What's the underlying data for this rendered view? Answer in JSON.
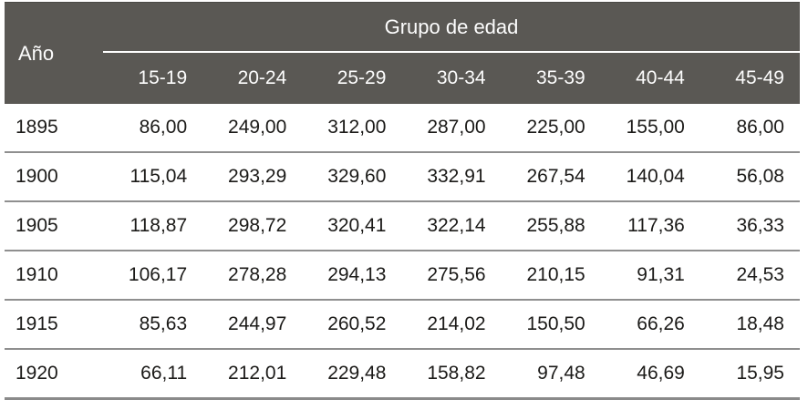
{
  "colors": {
    "header_bg": "#5a5854",
    "header_text": "#fdfdfd",
    "body_text": "#1b1a18",
    "row_line": "#8f8f8f"
  },
  "table": {
    "year_header": "Año",
    "group_header": "Grupo de edad",
    "age_columns": [
      "15-19",
      "20-24",
      "25-29",
      "30-34",
      "35-39",
      "40-44",
      "45-49"
    ],
    "rows": [
      {
        "year": "1895",
        "values": [
          "86,00",
          "249,00",
          "312,00",
          "287,00",
          "225,00",
          "155,00",
          "86,00"
        ]
      },
      {
        "year": "1900",
        "values": [
          "115,04",
          "293,29",
          "329,60",
          "332,91",
          "267,54",
          "140,04",
          "56,08"
        ]
      },
      {
        "year": "1905",
        "values": [
          "118,87",
          "298,72",
          "320,41",
          "322,14",
          "255,88",
          "117,36",
          "36,33"
        ]
      },
      {
        "year": "1910",
        "values": [
          "106,17",
          "278,28",
          "294,13",
          "275,56",
          "210,15",
          "91,31",
          "24,53"
        ]
      },
      {
        "year": "1915",
        "values": [
          "85,63",
          "244,97",
          "260,52",
          "214,02",
          "150,50",
          "66,26",
          "18,48"
        ]
      },
      {
        "year": "1920",
        "values": [
          "66,11",
          "212,01",
          "229,48",
          "158,82",
          "97,48",
          "46,69",
          "15,95"
        ]
      }
    ]
  },
  "chart_data": {
    "type": "table",
    "title": "Grupo de edad",
    "row_label": "Año",
    "columns": [
      "15-19",
      "20-24",
      "25-29",
      "30-34",
      "35-39",
      "40-44",
      "45-49"
    ],
    "row_keys": [
      1895,
      1900,
      1905,
      1910,
      1915,
      1920
    ],
    "values": [
      [
        86.0,
        249.0,
        312.0,
        287.0,
        225.0,
        155.0,
        86.0
      ],
      [
        115.04,
        293.29,
        329.6,
        332.91,
        267.54,
        140.04,
        56.08
      ],
      [
        118.87,
        298.72,
        320.41,
        322.14,
        255.88,
        117.36,
        36.33
      ],
      [
        106.17,
        278.28,
        294.13,
        275.56,
        210.15,
        91.31,
        24.53
      ],
      [
        85.63,
        244.97,
        260.52,
        214.02,
        150.5,
        66.26,
        18.48
      ],
      [
        66.11,
        212.01,
        229.48,
        158.82,
        97.48,
        46.69,
        15.95
      ]
    ],
    "decimal_separator": ","
  }
}
